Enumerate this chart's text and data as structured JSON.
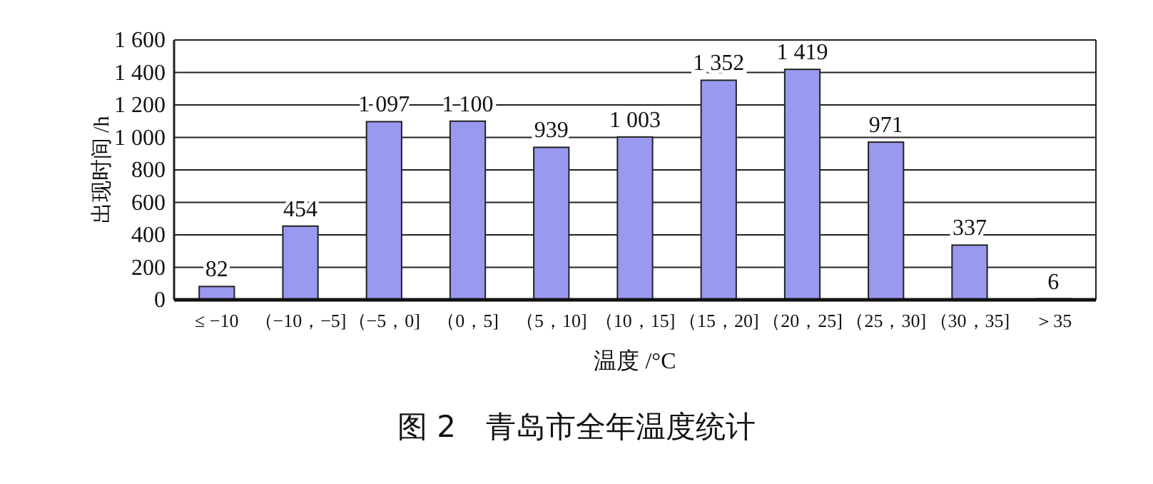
{
  "chart_data": {
    "type": "bar",
    "title": "图 2　青岛市全年温度统计",
    "xlabel": "温度 /°C",
    "ylabel": "出现时间 /h",
    "categories": [
      "≤ −10",
      "（−10，−5]",
      "（−5，0]",
      "（0，5]",
      "（5，10]",
      "（10，15]",
      "（15，20]",
      "（20，25]",
      "（25，30]",
      "（30，35]",
      "＞35"
    ],
    "values": [
      82,
      454,
      1097,
      1100,
      939,
      1003,
      1352,
      1419,
      971,
      337,
      6
    ],
    "value_labels": [
      "82",
      "454",
      "1 097",
      "1 100",
      "939",
      "1 003",
      "1 352",
      "1 419",
      "971",
      "337",
      "6"
    ],
    "color": "#9999f0",
    "ylim": [
      0,
      1600
    ],
    "yticks": [
      0,
      200,
      400,
      600,
      800,
      {
        "value": 1000,
        "label": "1 000"
      },
      {
        "value": 1200,
        "label": "1 200"
      },
      {
        "value": 1400,
        "label": "1 400"
      },
      {
        "value": 1600,
        "label": "1 600"
      }
    ],
    "grid": "y"
  }
}
